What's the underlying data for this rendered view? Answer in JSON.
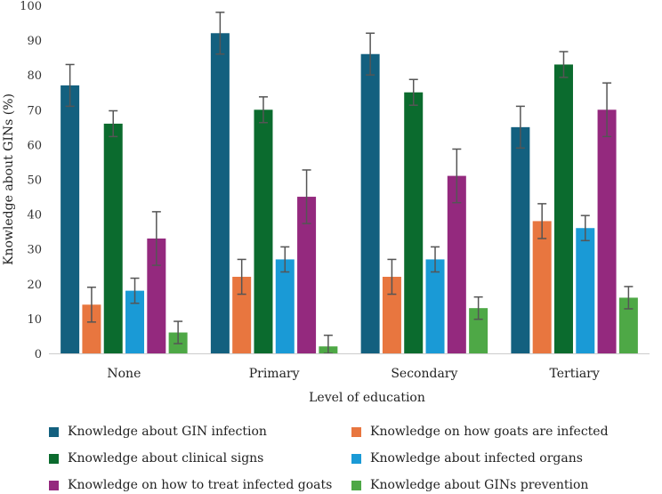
{
  "chart_data": {
    "type": "bar",
    "title": "",
    "xlabel": "Level of education",
    "ylabel": "Knowledge about GINs (%)",
    "ylim": [
      0,
      100
    ],
    "yticks": [
      0,
      10,
      20,
      30,
      40,
      50,
      60,
      70,
      80,
      90,
      100
    ],
    "categories": [
      "None",
      "Primary",
      "Secondary",
      "Tertiary"
    ],
    "series": [
      {
        "name": "Knowledge about GIN infection",
        "color": "#13607f",
        "values": [
          77,
          92,
          86,
          65
        ],
        "errors": [
          6,
          6,
          6,
          6
        ]
      },
      {
        "name": "Knowledge on how goats are infected",
        "color": "#e8763f",
        "values": [
          14,
          22,
          22,
          38
        ],
        "errors": [
          5,
          5,
          5,
          5
        ]
      },
      {
        "name": "Knowledge about clinical signs",
        "color": "#0b6b2e",
        "values": [
          66,
          70,
          75,
          83
        ],
        "errors": [
          3.7,
          3.7,
          3.7,
          3.7
        ]
      },
      {
        "name": "Knowledge about infected organs",
        "color": "#1a9ad6",
        "values": [
          18,
          27,
          27,
          36
        ],
        "errors": [
          3.6,
          3.6,
          3.6,
          3.6
        ]
      },
      {
        "name": "Knowledge on how to treat infected goats",
        "color": "#94297e",
        "values": [
          33,
          45,
          51,
          70
        ],
        "errors": [
          7.7,
          7.7,
          7.7,
          7.7
        ]
      },
      {
        "name": "Knowledge about GINs prevention",
        "color": "#4ea846",
        "values": [
          6,
          2,
          13,
          16
        ],
        "errors": [
          3.2,
          3.2,
          3.2,
          3.2
        ]
      }
    ],
    "legend_position": "bottom"
  }
}
